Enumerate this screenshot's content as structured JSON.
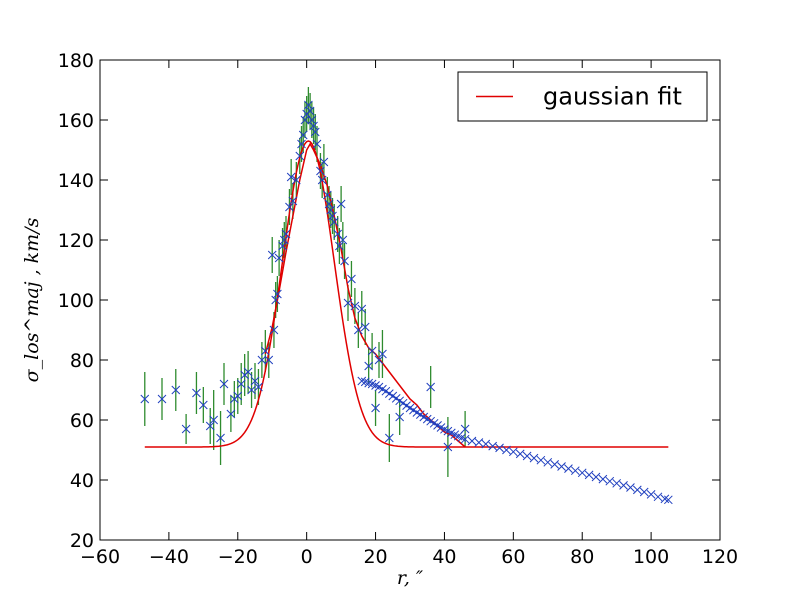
{
  "chart_data": {
    "type": "scatter",
    "title": "",
    "xlabel": "r, ″",
    "ylabel": "σ_los^maj , km/s",
    "xlim": [
      -60,
      120
    ],
    "ylim": [
      20,
      180
    ],
    "xticks": [
      -60,
      -40,
      -20,
      0,
      20,
      40,
      60,
      80,
      100,
      120
    ],
    "yticks": [
      20,
      40,
      60,
      80,
      100,
      120,
      140,
      160,
      180
    ],
    "xtick_labels": [
      "−60",
      "−40",
      "−20",
      "0",
      "20",
      "40",
      "60",
      "80",
      "100",
      "120"
    ],
    "ytick_labels": [
      "20",
      "40",
      "60",
      "80",
      "100",
      "120",
      "140",
      "160",
      "180"
    ],
    "grid": false,
    "legend": {
      "position": "top-right",
      "entries": [
        "gaussian fit"
      ]
    },
    "colors": {
      "points": "#1f3fbf",
      "errorbars": "#2e8b2e",
      "fit": "#e00000"
    },
    "series": [
      {
        "kind": "points-with-errorbars",
        "points": [
          [
            -47,
            67,
            9
          ],
          [
            -42,
            67,
            7
          ],
          [
            -38,
            70,
            7
          ],
          [
            -35,
            57,
            5
          ],
          [
            -32,
            69,
            7
          ],
          [
            -30,
            65,
            6
          ],
          [
            -28,
            58,
            6
          ],
          [
            -27,
            60,
            10
          ],
          [
            -25,
            54,
            9
          ],
          [
            -24,
            72,
            7
          ],
          [
            -22,
            62,
            6
          ],
          [
            -21,
            67,
            6
          ],
          [
            -20,
            68,
            6
          ],
          [
            -19,
            72,
            7
          ],
          [
            -18,
            75,
            7
          ],
          [
            -17,
            76,
            7
          ],
          [
            -16,
            70,
            6
          ],
          [
            -15,
            73,
            6
          ],
          [
            -14,
            71,
            6
          ],
          [
            -13,
            80,
            6
          ],
          [
            -12,
            83,
            7
          ],
          [
            -11,
            80,
            6
          ],
          [
            -10,
            115,
            6
          ],
          [
            -9.5,
            90,
            6
          ],
          [
            -9,
            100,
            6
          ],
          [
            -8.5,
            102,
            6
          ],
          [
            -8,
            114,
            6
          ],
          [
            -7,
            118,
            6
          ],
          [
            -6.5,
            120,
            6
          ],
          [
            -6,
            122,
            6
          ],
          [
            -5,
            131,
            6
          ],
          [
            -4.5,
            141,
            6
          ],
          [
            -4,
            133,
            6
          ],
          [
            -3,
            140,
            6
          ],
          [
            -2,
            148,
            6
          ],
          [
            -1.5,
            152,
            6
          ],
          [
            -1,
            155,
            6
          ],
          [
            -0.5,
            160,
            6
          ],
          [
            0,
            162,
            6
          ],
          [
            0.5,
            165,
            6
          ],
          [
            1,
            163,
            6
          ],
          [
            1.5,
            160,
            6
          ],
          [
            2,
            158,
            6
          ],
          [
            2.5,
            156,
            6
          ],
          [
            3,
            152,
            6
          ],
          [
            4,
            143,
            6
          ],
          [
            4.5,
            140,
            6
          ],
          [
            5,
            146,
            6
          ],
          [
            6,
            135,
            6
          ],
          [
            6.5,
            132,
            6
          ],
          [
            7,
            130,
            6
          ],
          [
            7.5,
            128,
            6
          ],
          [
            8,
            126,
            6
          ],
          [
            9,
            122,
            6
          ],
          [
            9.5,
            118,
            6
          ],
          [
            10,
            132,
            6
          ],
          [
            10.5,
            120,
            6
          ],
          [
            11,
            113,
            6
          ],
          [
            12,
            99,
            6
          ],
          [
            13,
            107,
            6
          ],
          [
            14,
            98,
            6
          ],
          [
            15,
            90,
            6
          ],
          [
            16,
            97,
            6
          ],
          [
            17,
            91,
            6
          ],
          [
            18,
            78,
            6
          ],
          [
            19,
            83,
            6
          ],
          [
            20,
            64,
            6
          ],
          [
            21,
            80,
            6
          ],
          [
            22,
            82,
            8
          ],
          [
            24,
            54,
            8
          ],
          [
            27,
            61,
            6
          ],
          [
            36,
            71,
            7
          ],
          [
            41,
            51,
            10
          ],
          [
            46,
            57,
            6
          ]
        ],
        "points_no_errorbars": [
          [
            16,
            73
          ],
          [
            17,
            72.7
          ],
          [
            18,
            72.3
          ],
          [
            19,
            72
          ],
          [
            20,
            71.5
          ],
          [
            21,
            71
          ],
          [
            22,
            70.3
          ],
          [
            23,
            69.6
          ],
          [
            24,
            68.8
          ],
          [
            25,
            68
          ],
          [
            26,
            67.2
          ],
          [
            27,
            66.4
          ],
          [
            28,
            65.6
          ],
          [
            29,
            64.8
          ],
          [
            30,
            64
          ],
          [
            31,
            63.3
          ],
          [
            32,
            62.5
          ],
          [
            33,
            61.8
          ],
          [
            34,
            61
          ],
          [
            35,
            60.3
          ],
          [
            36,
            59.6
          ],
          [
            37,
            58.9
          ],
          [
            38,
            58.2
          ],
          [
            39,
            57.5
          ],
          [
            40,
            56.9
          ],
          [
            41,
            56.3
          ],
          [
            42,
            55.7
          ],
          [
            43,
            55.1
          ],
          [
            44,
            54.6
          ],
          [
            45,
            54.1
          ],
          [
            46,
            53.6
          ],
          [
            48,
            53
          ],
          [
            50,
            52.5
          ],
          [
            52,
            52
          ],
          [
            54,
            51.3
          ],
          [
            56,
            50.7
          ],
          [
            58,
            50
          ],
          [
            60,
            49.4
          ],
          [
            62,
            48.7
          ],
          [
            64,
            48
          ],
          [
            66,
            47.3
          ],
          [
            68,
            46.6
          ],
          [
            70,
            45.9
          ],
          [
            72,
            45.2
          ],
          [
            74,
            44.5
          ],
          [
            76,
            43.8
          ],
          [
            78,
            43.1
          ],
          [
            80,
            42.4
          ],
          [
            82,
            41.7
          ],
          [
            84,
            41
          ],
          [
            86,
            40.3
          ],
          [
            88,
            39.6
          ],
          [
            90,
            38.9
          ],
          [
            92,
            38.2
          ],
          [
            94,
            37.5
          ],
          [
            96,
            36.7
          ],
          [
            98,
            36
          ],
          [
            100,
            35.2
          ],
          [
            102,
            34.4
          ],
          [
            104,
            33.7
          ],
          [
            105,
            33.4
          ]
        ]
      },
      {
        "name": "gaussian fit",
        "kind": "line",
        "gaussian": {
          "offset": 51,
          "amplitude": 102,
          "center": 0.5,
          "sigma": 7.5,
          "x_range": [
            -47,
            105
          ]
        }
      },
      {
        "kind": "line",
        "x": [
          -12,
          -10,
          -8,
          -6,
          -4,
          -2,
          0,
          1,
          2,
          4,
          6,
          8,
          10,
          12,
          14,
          16,
          18,
          20,
          22,
          24,
          26,
          28,
          30,
          32,
          34,
          36,
          38,
          40,
          42,
          44,
          46
        ],
        "y": [
          82,
          91,
          103,
          116,
          128,
          140,
          150,
          152,
          150,
          145,
          138,
          128,
          117,
          104,
          94,
          88,
          84,
          82,
          79,
          76,
          73,
          70,
          67,
          65,
          62,
          60,
          58,
          56,
          55,
          53,
          51
        ]
      }
    ]
  }
}
